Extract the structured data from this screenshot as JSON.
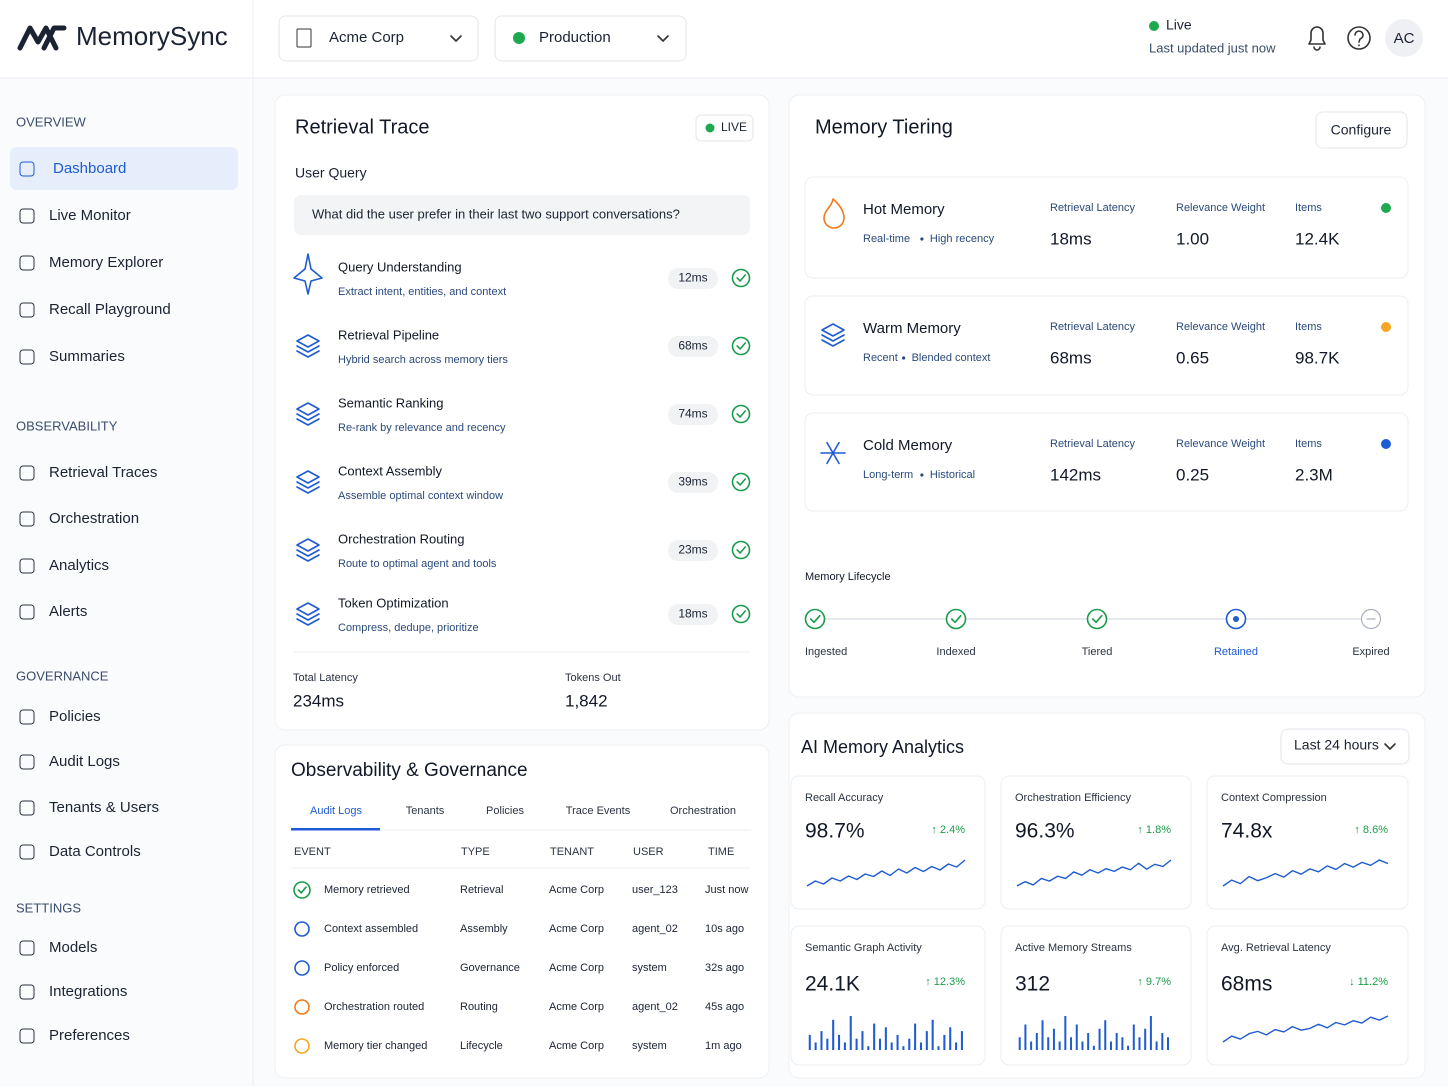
{
  "header": {
    "brand": "MemorySync",
    "org": "Acme Corp",
    "environment": "Production",
    "status": "Live",
    "updated": "Last updated just now",
    "avatar": "AC"
  },
  "sidebar": [
    {
      "title": "OVERVIEW",
      "items": [
        "Dashboard",
        "Live Monitor",
        "Memory Explorer",
        "Recall Playground",
        "Summaries"
      ]
    },
    {
      "title": "OBSERVABILITY",
      "items": [
        "Retrieval Traces",
        "Orchestration",
        "Analytics",
        "Alerts"
      ]
    },
    {
      "title": "GOVERNANCE",
      "items": [
        "Policies",
        "Audit Logs",
        "Tenants & Users",
        "Data Controls"
      ]
    },
    {
      "title": "SETTINGS",
      "items": [
        "Models",
        "Integrations",
        "Preferences"
      ]
    }
  ],
  "trace": {
    "title": "Retrieval Trace",
    "badge": "LIVE",
    "query_label": "User Query",
    "query": "What did the user prefer in their last two support conversations?",
    "steps": [
      {
        "name": "Query Understanding",
        "desc": "Extract intent, entities, and context",
        "time": "12ms"
      },
      {
        "name": "Retrieval Pipeline",
        "desc": "Hybrid search across memory tiers",
        "time": "68ms"
      },
      {
        "name": "Semantic Ranking",
        "desc": "Re-rank by relevance and recency",
        "time": "74ms"
      },
      {
        "name": "Context Assembly",
        "desc": "Assemble optimal context window",
        "time": "39ms"
      },
      {
        "name": "Orchestration Routing",
        "desc": "Route to optimal agent and tools",
        "time": "23ms"
      },
      {
        "name": "Token Optimization",
        "desc": "Compress, dedupe, prioritize",
        "time": "18ms"
      }
    ],
    "total_label": "Total Latency",
    "total": "234ms",
    "tokens_label": "Tokens Out",
    "tokens": "1,842"
  },
  "governance": {
    "title": "Observability & Governance",
    "tabs": [
      "Audit Logs",
      "Tenants",
      "Policies",
      "Trace Events",
      "Orchestration"
    ],
    "columns": [
      "EVENT",
      "TYPE",
      "TENANT",
      "USER",
      "TIME"
    ],
    "rows": [
      [
        "Memory retrieved",
        "Retrieval",
        "Acme Corp",
        "user_123",
        "Just now"
      ],
      [
        "Context assembled",
        "Assembly",
        "Acme Corp",
        "agent_02",
        "10s ago"
      ],
      [
        "Policy enforced",
        "Governance",
        "Acme Corp",
        "system",
        "32s ago"
      ],
      [
        "Orchestration routed",
        "Routing",
        "Acme Corp",
        "agent_02",
        "45s ago"
      ],
      [
        "Memory tier changed",
        "Lifecycle",
        "Acme Corp",
        "system",
        "1m ago"
      ]
    ],
    "row_colors": [
      "#1a9c4a",
      "#1f5bd1",
      "#1f5bd1",
      "#f07b1a",
      "#f5a623"
    ]
  },
  "tiering": {
    "title": "Memory Tiering",
    "button": "Configure",
    "columns": [
      "Retrieval Latency",
      "Relevance Weight",
      "Items"
    ],
    "tiers": [
      {
        "name": "Hot Memory",
        "tags": [
          "Real-time",
          "High recency"
        ],
        "values": [
          "18ms",
          "1.00",
          "12.4K"
        ],
        "color": "#1fa94f",
        "icon_color": "#f07b1a"
      },
      {
        "name": "Warm Memory",
        "tags": [
          "Recent",
          "Blended context"
        ],
        "values": [
          "68ms",
          "0.65",
          "98.7K"
        ],
        "color": "#f5a623",
        "icon_color": "#1f5bd1"
      },
      {
        "name": "Cold Memory",
        "tags": [
          "Long-term",
          "Historical"
        ],
        "values": [
          "142ms",
          "0.25",
          "2.3M"
        ],
        "color": "#1f5bd1",
        "icon_color": "#1f5bd1"
      }
    ],
    "lifecycle_label": "Memory Lifecycle",
    "lifecycle": [
      {
        "name": "Ingested",
        "color": "#1a9c4a"
      },
      {
        "name": "Indexed",
        "color": "#1a9c4a"
      },
      {
        "name": "Tiered",
        "color": "#1a9c4a"
      },
      {
        "name": "Retained",
        "color": "#1f5bd1"
      },
      {
        "name": "Expired",
        "color": "#a9b0bc"
      }
    ]
  },
  "analytics": {
    "title": "AI Memory Analytics",
    "range": "Last 24 hours",
    "cards": [
      {
        "label": "Recall Accuracy",
        "value": "98.7%",
        "change": "↑ 2.4%",
        "chart": "line",
        "trend": [
          3,
          4,
          3.4,
          4.6,
          4,
          5,
          4.3,
          5.4,
          4.9,
          6,
          5.1,
          6.4,
          5.6,
          6.7,
          5.9,
          6.9,
          6.2,
          7.4,
          6.8,
          8.2
        ]
      },
      {
        "label": "Orchestration Efficiency",
        "value": "96.3%",
        "change": "↑ 1.8%",
        "chart": "line",
        "trend": [
          3,
          3.8,
          3.2,
          4.4,
          3.9,
          4.8,
          4.4,
          5.6,
          5,
          6,
          5.4,
          6.2,
          5.7,
          6.5,
          6,
          7.2,
          6.1,
          7,
          6.6,
          7.8
        ]
      },
      {
        "label": "Context Compression",
        "value": "74.8x",
        "change": "↑ 8.6%",
        "chart": "line",
        "trend": [
          3.2,
          4.2,
          3.6,
          4.8,
          4.1,
          4.6,
          5.3,
          4.7,
          5.8,
          5.2,
          6.1,
          5.6,
          6.6,
          6,
          7,
          6.4,
          7.2,
          6.7,
          7.6,
          7
        ]
      },
      {
        "label": "Semantic Graph Activity",
        "value": "24.1K",
        "change": "↑ 12.3%",
        "chart": "bar",
        "trend": [
          4,
          2,
          5,
          3,
          8,
          4,
          2,
          9,
          3,
          5,
          1,
          7,
          3,
          6,
          2,
          4,
          1,
          3,
          7,
          2,
          5,
          8,
          1,
          4,
          6,
          2,
          5
        ]
      },
      {
        "label": "Active Memory Streams",
        "value": "312",
        "change": "↑ 9.7%",
        "chart": "bar",
        "trend": [
          3,
          6,
          2,
          4,
          7,
          3,
          5,
          2,
          8,
          3,
          6,
          2,
          4,
          1,
          5,
          7,
          2,
          4,
          3,
          1,
          6,
          3,
          5,
          8,
          2,
          4,
          3
        ]
      },
      {
        "label": "Avg. Retrieval Latency",
        "value": "68ms",
        "change": "↓ 11.2%",
        "chart": "line",
        "trend": [
          3,
          4,
          3.5,
          4.4,
          4.8,
          4.2,
          5.1,
          4.7,
          5.6,
          5,
          5.3,
          6,
          5.4,
          6.3,
          5.9,
          6.6,
          6.2,
          7.2,
          6.7,
          7.4
        ]
      }
    ],
    "change_color": "#1a9c4a"
  }
}
